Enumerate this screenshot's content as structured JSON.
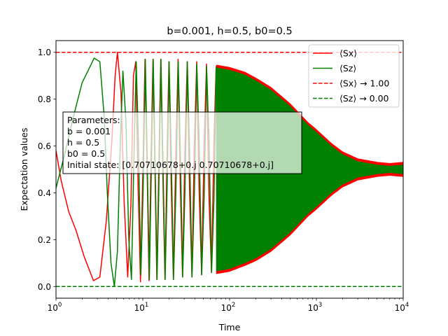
{
  "chart_data": {
    "type": "line",
    "title": "b=0.001, h=0.5, b0=0.5",
    "xlabel": "Time",
    "ylabel": "Expectation values",
    "xscale": "log",
    "xlim": [
      1,
      10000
    ],
    "ylim": [
      -0.05,
      1.05
    ],
    "x_ticks": [
      {
        "value": 1,
        "base": "10",
        "exp": "0"
      },
      {
        "value": 10,
        "base": "10",
        "exp": "1"
      },
      {
        "value": 100,
        "base": "10",
        "exp": "2"
      },
      {
        "value": 1000,
        "base": "10",
        "exp": "3"
      },
      {
        "value": 10000,
        "base": "10",
        "exp": "4"
      }
    ],
    "y_ticks": [
      {
        "value": 0.0,
        "label": "0.0"
      },
      {
        "value": 0.2,
        "label": "0.2"
      },
      {
        "value": 0.4,
        "label": "0.4"
      },
      {
        "value": 0.6,
        "label": "0.6"
      },
      {
        "value": 0.8,
        "label": "0.8"
      },
      {
        "value": 1.0,
        "label": "1.0"
      }
    ],
    "grid": false,
    "legend_position": "upper-right",
    "series": [
      {
        "key": "sx",
        "name": "⟨Sx⟩",
        "color": "#ff0000",
        "style": "solid",
        "x": [
          1.0,
          1.15,
          1.4,
          1.7,
          2.1,
          2.7,
          3.2,
          3.8,
          4.4,
          4.8,
          5.1,
          5.6,
          6.1,
          6.7,
          7.3,
          7.8,
          8.3,
          8.8,
          9.4,
          10.0,
          10.6,
          11.2,
          11.8,
          12.4,
          13.1,
          13.8,
          14.5,
          15.3,
          16.1,
          17.0,
          18.0,
          19.0,
          20.0,
          21.2,
          22.5,
          24.0,
          25.5,
          27.0,
          28.7,
          30.5,
          32.5,
          34.5,
          36.8,
          39.2,
          41.8,
          44.6,
          47.6,
          50.8,
          54.2,
          57.9,
          61.8,
          66.0,
          70.0
        ],
        "y": [
          0.58,
          0.45,
          0.32,
          0.24,
          0.13,
          0.025,
          0.04,
          0.28,
          0.62,
          0.9,
          1.0,
          0.83,
          0.36,
          0.04,
          0.35,
          0.9,
          0.96,
          0.45,
          0.02,
          0.48,
          0.97,
          0.51,
          0.025,
          0.53,
          0.97,
          0.5,
          0.03,
          0.52,
          0.97,
          0.48,
          0.03,
          0.55,
          0.96,
          0.45,
          0.03,
          0.56,
          0.97,
          0.44,
          0.04,
          0.57,
          0.96,
          0.42,
          0.04,
          0.6,
          0.96,
          0.4,
          0.05,
          0.6,
          0.95,
          0.38,
          0.06,
          0.62,
          0.94
        ]
      },
      {
        "key": "sz",
        "name": "⟨Sz⟩",
        "color": "#008000",
        "style": "solid",
        "x": [
          1.0,
          1.25,
          1.6,
          2.0,
          2.4,
          2.75,
          3.2,
          3.6,
          3.9,
          4.3,
          4.7,
          5.1,
          5.5,
          5.9,
          6.4,
          6.9,
          7.4,
          7.9,
          8.4,
          8.9,
          9.5,
          10.1,
          10.7,
          11.3,
          11.9,
          12.5,
          13.2,
          13.9,
          14.6,
          15.4,
          16.2,
          17.1,
          18.1,
          19.1,
          20.1,
          21.3,
          22.6,
          24.1,
          25.6,
          27.1,
          28.8,
          30.6,
          32.6,
          34.6,
          36.9,
          39.3,
          41.9,
          44.7,
          47.7,
          50.9,
          54.3,
          58.0,
          62.0,
          66.1,
          70.0
        ],
        "y": [
          0.42,
          0.56,
          0.73,
          0.87,
          0.93,
          0.975,
          0.96,
          0.72,
          0.4,
          0.1,
          0.0,
          0.15,
          0.6,
          0.92,
          0.7,
          0.2,
          0.03,
          0.55,
          0.96,
          0.62,
          0.05,
          0.42,
          0.97,
          0.5,
          0.03,
          0.47,
          0.97,
          0.5,
          0.03,
          0.47,
          0.97,
          0.52,
          0.03,
          0.44,
          0.96,
          0.56,
          0.03,
          0.42,
          0.96,
          0.57,
          0.04,
          0.41,
          0.96,
          0.58,
          0.04,
          0.4,
          0.95,
          0.6,
          0.05,
          0.38,
          0.94,
          0.62,
          0.06,
          0.37,
          0.94
        ]
      },
      {
        "key": "sx_lim",
        "name": "⟨Sx⟩ → 1.00",
        "color": "#ff0000",
        "style": "dashed",
        "value": 1.0
      },
      {
        "key": "sz_lim",
        "name": "⟨Sz⟩ → 0.00",
        "color": "#008000",
        "style": "dashed",
        "value": 0.0
      }
    ],
    "envelope": {
      "x": [
        70,
        100,
        150,
        200,
        300,
        500,
        800,
        1000,
        1500,
        2000,
        3000,
        5000,
        7000,
        10000
      ],
      "upper": [
        0.935,
        0.925,
        0.905,
        0.88,
        0.84,
        0.77,
        0.69,
        0.66,
        0.6,
        0.565,
        0.535,
        0.52,
        0.515,
        0.52
      ],
      "lower": [
        0.065,
        0.075,
        0.1,
        0.12,
        0.16,
        0.23,
        0.31,
        0.34,
        0.4,
        0.435,
        0.465,
        0.48,
        0.485,
        0.48
      ]
    },
    "annotation": {
      "lines": [
        "Parameters:",
        "b = 0.001",
        "h = 0.5",
        "b0 = 0.5",
        "Initial state: [0.70710678+0.j 0.70710678+0.j]"
      ]
    }
  }
}
